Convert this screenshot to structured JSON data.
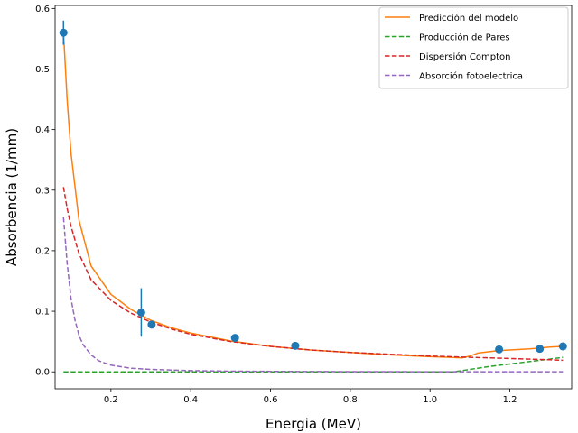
{
  "chart_data": {
    "type": "line",
    "title": "",
    "xlabel": "Energia (MeV)",
    "ylabel": "Absorbencia (1/mm)",
    "xlim": [
      0.06,
      1.355
    ],
    "ylim": [
      -0.028,
      0.605
    ],
    "x_ticks": [
      0.2,
      0.4,
      0.6,
      0.8,
      1.0,
      1.2
    ],
    "x_tick_labels": [
      "0.2",
      "0.4",
      "0.6",
      "0.8",
      "1.0",
      "1.2"
    ],
    "y_ticks": [
      0.0,
      0.1,
      0.2,
      0.3,
      0.4,
      0.5,
      0.6
    ],
    "y_tick_labels": [
      "0.0",
      "0.1",
      "0.2",
      "0.3",
      "0.4",
      "0.5",
      "0.6"
    ],
    "grid": false,
    "legend_position": "top-right",
    "series": [
      {
        "name": "Predicción del modelo",
        "style": "solid",
        "color": "#ff7f0e",
        "x": [
          0.081,
          0.09,
          0.1,
          0.12,
          0.15,
          0.2,
          0.25,
          0.3,
          0.35,
          0.4,
          0.5,
          0.6,
          0.7,
          0.8,
          0.9,
          1.0,
          1.05,
          1.08,
          1.1,
          1.12,
          1.17,
          1.25,
          1.3,
          1.333
        ],
        "y": [
          0.56,
          0.45,
          0.36,
          0.25,
          0.175,
          0.128,
          0.103,
          0.085,
          0.073,
          0.064,
          0.051,
          0.042,
          0.036,
          0.032,
          0.028,
          0.025,
          0.024,
          0.023,
          0.026,
          0.031,
          0.035,
          0.038,
          0.041,
          0.042
        ]
      },
      {
        "name": "Producción de Pares",
        "style": "dashed",
        "color": "#2ca02c",
        "x": [
          0.081,
          0.4,
          0.8,
          1.022,
          1.06,
          1.1,
          1.15,
          1.2,
          1.25,
          1.3,
          1.333
        ],
        "y": [
          0.0,
          0.0,
          0.0,
          0.0,
          0.0,
          0.004,
          0.009,
          0.013,
          0.017,
          0.021,
          0.024
        ]
      },
      {
        "name": "Dispersión Compton",
        "style": "dashed",
        "color": "#d62728",
        "x": [
          0.081,
          0.09,
          0.1,
          0.12,
          0.15,
          0.2,
          0.25,
          0.3,
          0.35,
          0.4,
          0.5,
          0.6,
          0.7,
          0.8,
          0.9,
          1.0,
          1.1,
          1.2,
          1.3,
          1.333
        ],
        "y": [
          0.305,
          0.27,
          0.24,
          0.195,
          0.152,
          0.118,
          0.097,
          0.082,
          0.071,
          0.062,
          0.05,
          0.042,
          0.036,
          0.032,
          0.029,
          0.026,
          0.024,
          0.022,
          0.02,
          0.019
        ]
      },
      {
        "name": "Absorción fotoelectrica",
        "style": "dashed",
        "color": "#9467bd",
        "x": [
          0.081,
          0.09,
          0.1,
          0.11,
          0.12,
          0.13,
          0.15,
          0.17,
          0.2,
          0.25,
          0.3,
          0.4,
          0.5,
          0.7,
          1.0,
          1.333
        ],
        "y": [
          0.255,
          0.18,
          0.12,
          0.085,
          0.06,
          0.045,
          0.028,
          0.018,
          0.011,
          0.006,
          0.004,
          0.002,
          0.001,
          0.0005,
          0.0002,
          0.0001
        ]
      }
    ],
    "measurements": {
      "color": "#1f77b4",
      "x": [
        0.081,
        0.276,
        0.302,
        0.511,
        0.662,
        1.173,
        1.275,
        1.333
      ],
      "y": [
        0.56,
        0.098,
        0.078,
        0.056,
        0.043,
        0.037,
        0.038,
        0.042
      ],
      "yerr": [
        0.02,
        0.04,
        0.0,
        0.0,
        0.0,
        0.0,
        0.0,
        0.0
      ]
    }
  }
}
